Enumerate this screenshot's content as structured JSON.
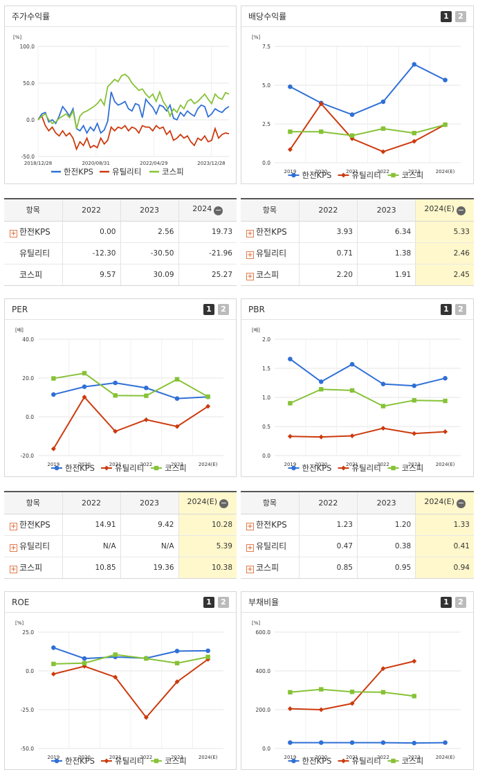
{
  "colors": {
    "kps": "#2f6fd6",
    "util": "#cc3a0e",
    "kospi": "#86c236"
  },
  "legend": [
    "한전KPS",
    "유틸리티",
    "코스피"
  ],
  "panels": {
    "stock": {
      "title": "주가수익률",
      "chart_data": {
        "type": "line",
        "title": "주가수익률",
        "unit": "[%]",
        "yticks": [
          "100.0",
          "50.0",
          "0.0",
          "-50.0"
        ],
        "ylim": [
          -50,
          100
        ],
        "xticks": [
          "2018/12/28",
          "2020/08/31",
          "2022/04/29",
          "2023/12/28"
        ],
        "x_range_years": [
          2018.99,
          2024.5
        ],
        "series": [
          {
            "name": "한전KPS",
            "x": [
              2018.99,
              2019.1,
              2019.2,
              2019.3,
              2019.4,
              2019.5,
              2019.6,
              2019.7,
              2019.8,
              2019.9,
              2020.0,
              2020.1,
              2020.2,
              2020.3,
              2020.4,
              2020.5,
              2020.6,
              2020.7,
              2020.8,
              2020.9,
              2021.0,
              2021.1,
              2021.2,
              2021.3,
              2021.4,
              2021.5,
              2021.6,
              2021.7,
              2021.8,
              2021.9,
              2022.0,
              2022.1,
              2022.2,
              2022.3,
              2022.4,
              2022.5,
              2022.6,
              2022.7,
              2022.8,
              2022.9,
              2023.0,
              2023.1,
              2023.2,
              2023.3,
              2023.4,
              2023.5,
              2023.6,
              2023.7,
              2023.8,
              2023.9,
              2024.0,
              2024.1,
              2024.2,
              2024.3,
              2024.4,
              2024.5
            ],
            "y": [
              0,
              8,
              10,
              -3,
              0,
              -5,
              5,
              18,
              12,
              5,
              15,
              -12,
              -15,
              -8,
              -18,
              -10,
              -15,
              -5,
              -18,
              -14,
              -2,
              38,
              25,
              20,
              22,
              25,
              15,
              12,
              22,
              20,
              3,
              28,
              22,
              17,
              8,
              20,
              18,
              12,
              20,
              2,
              0,
              10,
              5,
              12,
              8,
              5,
              15,
              20,
              18,
              4,
              8,
              15,
              12,
              10,
              15,
              18
            ]
          },
          {
            "name": "유틸리티",
            "x": [
              2018.99,
              2019.1,
              2019.2,
              2019.3,
              2019.4,
              2019.5,
              2019.6,
              2019.7,
              2019.8,
              2019.9,
              2020.0,
              2020.1,
              2020.2,
              2020.3,
              2020.4,
              2020.5,
              2020.6,
              2020.7,
              2020.8,
              2020.9,
              2021.0,
              2021.1,
              2021.2,
              2021.3,
              2021.4,
              2021.5,
              2021.6,
              2021.7,
              2021.8,
              2021.9,
              2022.0,
              2022.1,
              2022.2,
              2022.3,
              2022.4,
              2022.5,
              2022.6,
              2022.7,
              2022.8,
              2022.9,
              2023.0,
              2023.1,
              2023.2,
              2023.3,
              2023.4,
              2023.5,
              2023.6,
              2023.7,
              2023.8,
              2023.9,
              2024.0,
              2024.1,
              2024.2,
              2024.3,
              2024.4,
              2024.5
            ],
            "y": [
              0,
              5,
              -8,
              -15,
              -10,
              -18,
              -22,
              -15,
              -22,
              -18,
              -25,
              -40,
              -30,
              -35,
              -25,
              -38,
              -35,
              -38,
              -25,
              -33,
              -28,
              -10,
              -15,
              -10,
              -12,
              -8,
              -15,
              -10,
              -12,
              -18,
              -8,
              -10,
              -10,
              -15,
              -8,
              -12,
              -10,
              -20,
              -15,
              -28,
              -25,
              -20,
              -25,
              -22,
              -30,
              -35,
              -25,
              -28,
              -22,
              -30,
              -28,
              -12,
              -25,
              -20,
              -18,
              -19
            ]
          },
          {
            "name": "코스피",
            "x": [
              2018.99,
              2019.1,
              2019.2,
              2019.3,
              2019.4,
              2019.5,
              2019.6,
              2019.7,
              2019.8,
              2019.9,
              2020.0,
              2020.1,
              2020.2,
              2020.3,
              2020.4,
              2020.5,
              2020.6,
              2020.7,
              2020.8,
              2020.9,
              2021.0,
              2021.1,
              2021.2,
              2021.3,
              2021.4,
              2021.5,
              2021.6,
              2021.7,
              2021.8,
              2021.9,
              2022.0,
              2022.1,
              2022.2,
              2022.3,
              2022.4,
              2022.5,
              2022.6,
              2022.7,
              2022.8,
              2022.9,
              2023.0,
              2023.1,
              2023.2,
              2023.3,
              2023.4,
              2023.5,
              2023.6,
              2023.7,
              2023.8,
              2023.9,
              2024.0,
              2024.1,
              2024.2,
              2024.3,
              2024.4,
              2024.5
            ],
            "y": [
              0,
              5,
              8,
              0,
              -5,
              -3,
              2,
              5,
              8,
              3,
              12,
              -12,
              5,
              10,
              12,
              15,
              18,
              22,
              28,
              20,
              45,
              50,
              55,
              52,
              60,
              62,
              58,
              50,
              45,
              40,
              42,
              35,
              30,
              35,
              25,
              38,
              25,
              18,
              5,
              15,
              10,
              20,
              15,
              25,
              28,
              22,
              25,
              30,
              35,
              28,
              22,
              35,
              30,
              28,
              37,
              35
            ]
          }
        ]
      }
    },
    "dividend": {
      "title": "배당수익률",
      "pages": [
        "1",
        "2"
      ],
      "chart_data": {
        "type": "line",
        "title": "배당수익률",
        "unit": "[%]",
        "categories": [
          "2019",
          "2020",
          "2021",
          "2022",
          "2023",
          "2024(E)"
        ],
        "yticks": [
          "7.5",
          "5.0",
          "2.5",
          "0.0"
        ],
        "ylim": [
          0,
          7.5
        ],
        "series": [
          {
            "name": "한전KPS",
            "values": [
              4.9,
              3.85,
              3.1,
              3.93,
              6.34,
              5.33
            ]
          },
          {
            "name": "유틸리티",
            "values": [
              0.85,
              3.8,
              1.55,
              0.71,
              1.38,
              2.46
            ]
          },
          {
            "name": "코스피",
            "values": [
              2.0,
              2.0,
              1.75,
              2.2,
              1.91,
              2.45
            ]
          }
        ]
      }
    },
    "per": {
      "title": "PER",
      "pages": [
        "1",
        "2"
      ],
      "chart_data": {
        "type": "line",
        "title": "PER",
        "unit": "[배]",
        "categories": [
          "2019",
          "2020",
          "2021",
          "2022",
          "2023",
          "2024(E)"
        ],
        "yticks": [
          "40.0",
          "20.0",
          "0.0",
          "-20.0"
        ],
        "ylim": [
          -20,
          40
        ],
        "series": [
          {
            "name": "한전KPS",
            "values": [
              11.5,
              15.5,
              17.5,
              14.91,
              9.42,
              10.28
            ]
          },
          {
            "name": "유틸리티",
            "values": [
              -16.5,
              10.2,
              -7.5,
              -1.5,
              -5.0,
              5.39
            ]
          },
          {
            "name": "코스피",
            "values": [
              19.8,
              22.5,
              11.0,
              10.85,
              19.36,
              10.38
            ]
          }
        ]
      }
    },
    "pbr": {
      "title": "PBR",
      "pages": [
        "1",
        "2"
      ],
      "chart_data": {
        "type": "line",
        "title": "PBR",
        "unit": "[배]",
        "categories": [
          "2019",
          "2020",
          "2021",
          "2022",
          "2023",
          "2024(E)"
        ],
        "yticks": [
          "2.0",
          "1.5",
          "1.0",
          "0.5",
          "0.0"
        ],
        "ylim": [
          0,
          2
        ],
        "series": [
          {
            "name": "한전KPS",
            "values": [
              1.66,
              1.27,
              1.57,
              1.23,
              1.2,
              1.33
            ]
          },
          {
            "name": "유틸리티",
            "values": [
              0.33,
              0.32,
              0.34,
              0.47,
              0.38,
              0.41
            ]
          },
          {
            "name": "코스피",
            "values": [
              0.9,
              1.14,
              1.12,
              0.85,
              0.95,
              0.94
            ]
          }
        ]
      }
    },
    "roe": {
      "title": "ROE",
      "pages": [
        "1",
        "2"
      ],
      "chart_data": {
        "type": "line",
        "title": "ROE",
        "unit": "[%]",
        "categories": [
          "2019",
          "2020",
          "2021",
          "2022",
          "2023",
          "2024(E)"
        ],
        "yticks": [
          "25.0",
          "0.0",
          "-25.0",
          "-50.0"
        ],
        "ylim": [
          -50,
          25
        ],
        "series": [
          {
            "name": "한전KPS",
            "values": [
              15.0,
              8.0,
              9.0,
              8.2,
              12.8,
              13.0
            ]
          },
          {
            "name": "유틸리티",
            "values": [
              -2.0,
              3.0,
              -4.0,
              -30.0,
              -7.0,
              7.5
            ]
          },
          {
            "name": "코스피",
            "values": [
              4.5,
              5.0,
              10.5,
              8.0,
              5.0,
              9.0
            ]
          }
        ]
      }
    },
    "debt": {
      "title": "부채비율",
      "pages": [
        "1",
        "2"
      ],
      "chart_data": {
        "type": "line",
        "title": "부채비율",
        "unit": "[%]",
        "categories": [
          "2019",
          "2020",
          "2021",
          "2022",
          "2023",
          "2024(E)"
        ],
        "yticks": [
          "600.0",
          "400.0",
          "200.0",
          "0.0"
        ],
        "ylim": [
          0,
          600
        ],
        "series": [
          {
            "name": "한전KPS",
            "values": [
              30,
              30,
              30,
              30,
              28,
              30
            ]
          },
          {
            "name": "유틸리티",
            "values": [
              205,
              200,
              232,
              412,
              450,
              null
            ]
          },
          {
            "name": "코스피",
            "values": [
              290,
              305,
              292,
              290,
              270,
              null
            ]
          }
        ]
      }
    }
  },
  "tables": {
    "stock": {
      "headers": [
        "항목",
        "2022",
        "2023",
        "2024"
      ],
      "rows": [
        {
          "name": "한전KPS",
          "plus": true,
          "values": [
            "0.00",
            "2.56",
            "19.73"
          ]
        },
        {
          "name": "유틸리티",
          "plus": false,
          "values": [
            "-12.30",
            "-30.50",
            "-21.96"
          ]
        },
        {
          "name": "코스피",
          "plus": false,
          "values": [
            "9.57",
            "30.09",
            "25.27"
          ]
        }
      ]
    },
    "dividend": {
      "headers": [
        "항목",
        "2022",
        "2023",
        "2024(E)"
      ],
      "rows": [
        {
          "name": "한전KPS",
          "plus": true,
          "values": [
            "3.93",
            "6.34",
            "5.33"
          ]
        },
        {
          "name": "유틸리티",
          "plus": true,
          "values": [
            "0.71",
            "1.38",
            "2.46"
          ]
        },
        {
          "name": "코스피",
          "plus": true,
          "values": [
            "2.20",
            "1.91",
            "2.45"
          ]
        }
      ]
    },
    "per": {
      "headers": [
        "항목",
        "2022",
        "2023",
        "2024(E)"
      ],
      "rows": [
        {
          "name": "한전KPS",
          "plus": true,
          "values": [
            "14.91",
            "9.42",
            "10.28"
          ]
        },
        {
          "name": "유틸리티",
          "plus": true,
          "values": [
            "N/A",
            "N/A",
            "5.39"
          ]
        },
        {
          "name": "코스피",
          "plus": true,
          "values": [
            "10.85",
            "19.36",
            "10.38"
          ]
        }
      ]
    },
    "pbr": {
      "headers": [
        "항목",
        "2022",
        "2023",
        "2024(E)"
      ],
      "rows": [
        {
          "name": "한전KPS",
          "plus": true,
          "values": [
            "1.23",
            "1.20",
            "1.33"
          ]
        },
        {
          "name": "유틸리티",
          "plus": true,
          "values": [
            "0.47",
            "0.38",
            "0.41"
          ]
        },
        {
          "name": "코스피",
          "plus": true,
          "values": [
            "0.85",
            "0.95",
            "0.94"
          ]
        }
      ]
    }
  }
}
